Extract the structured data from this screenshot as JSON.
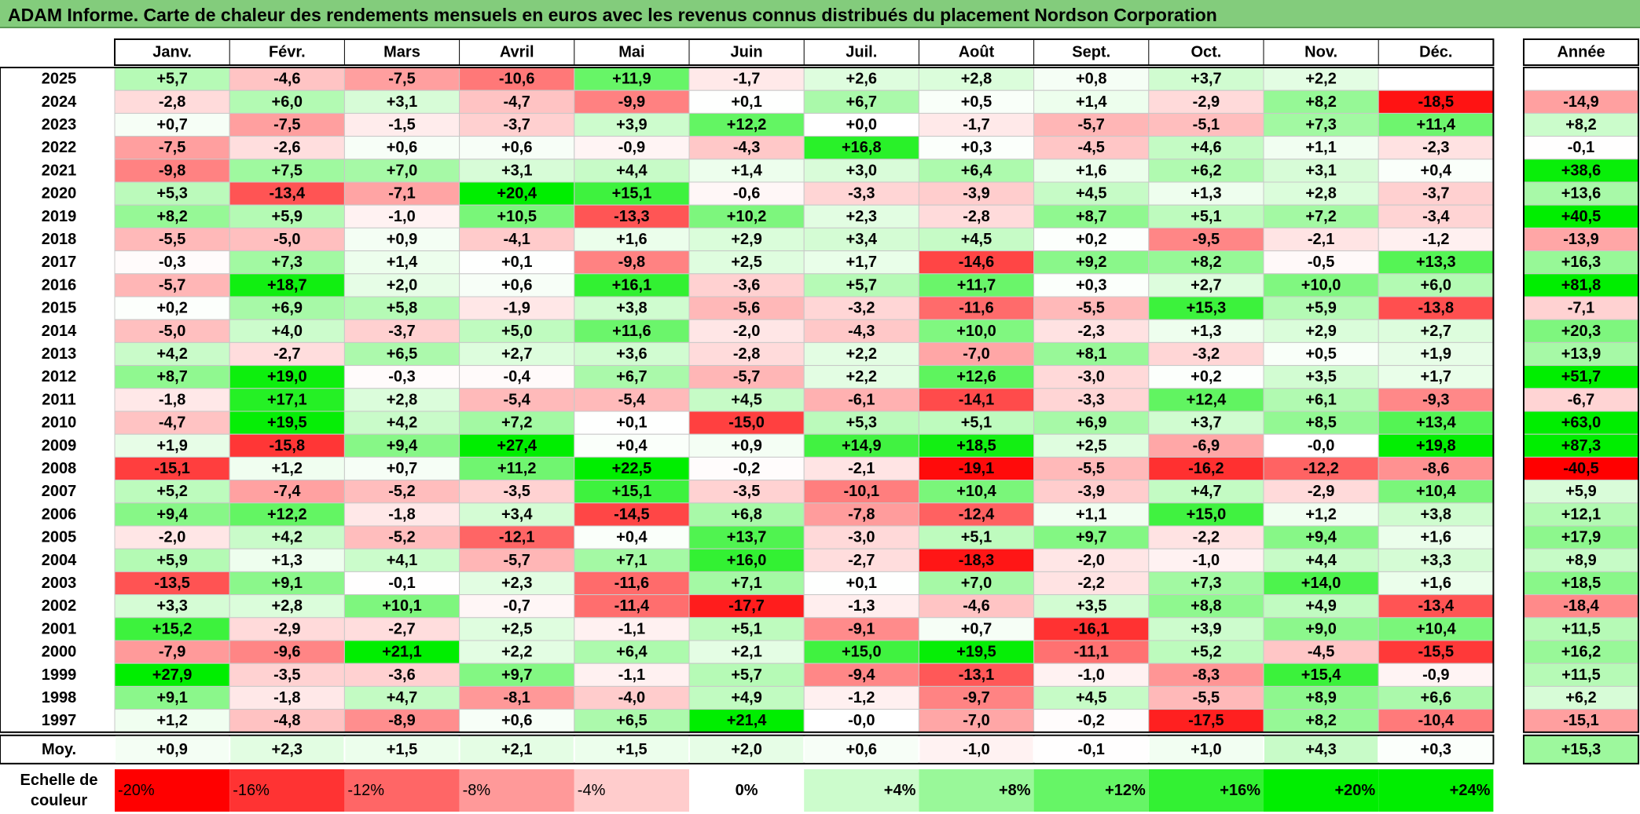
{
  "title": "ADAM Informe. Carte de chaleur des rendements mensuels en euros avec les revenus connus distribués du placement Nordson Corporation",
  "chart_data": {
    "type": "heatmap",
    "months": [
      "Janv.",
      "Févr.",
      "Mars",
      "Avril",
      "Mai",
      "Juin",
      "Juil.",
      "Août",
      "Sept.",
      "Oct.",
      "Nov.",
      "Déc."
    ],
    "annual_header": "Année",
    "years": [
      "2025",
      "2024",
      "2023",
      "2022",
      "2021",
      "2020",
      "2019",
      "2018",
      "2017",
      "2016",
      "2015",
      "2014",
      "2013",
      "2012",
      "2011",
      "2010",
      "2009",
      "2008",
      "2007",
      "2006",
      "2005",
      "2004",
      "2003",
      "2002",
      "2001",
      "2000",
      "1999",
      "1998",
      "1997"
    ],
    "values": [
      [
        "+5,7",
        "-4,6",
        "-7,5",
        "-10,6",
        "+11,9",
        "-1,7",
        "+2,6",
        "+2,8",
        "+0,8",
        "+3,7",
        "+2,2",
        ""
      ],
      [
        "-2,8",
        "+6,0",
        "+3,1",
        "-4,7",
        "-9,9",
        "+0,1",
        "+6,7",
        "+0,5",
        "+1,4",
        "-2,9",
        "+8,2",
        "-18,5"
      ],
      [
        "+0,7",
        "-7,5",
        "-1,5",
        "-3,7",
        "+3,9",
        "+12,2",
        "+0,0",
        "-1,7",
        "-5,7",
        "-5,1",
        "+7,3",
        "+11,4"
      ],
      [
        "-7,5",
        "-2,6",
        "+0,6",
        "+0,6",
        "-0,9",
        "-4,3",
        "+16,8",
        "+0,3",
        "-4,5",
        "+4,6",
        "+1,1",
        "-2,3"
      ],
      [
        "-9,8",
        "+7,5",
        "+7,0",
        "+3,1",
        "+4,4",
        "+1,4",
        "+3,0",
        "+6,4",
        "+1,6",
        "+6,2",
        "+3,1",
        "+0,4"
      ],
      [
        "+5,3",
        "-13,4",
        "-7,1",
        "+20,4",
        "+15,1",
        "-0,6",
        "-3,3",
        "-3,9",
        "+4,5",
        "+1,3",
        "+2,8",
        "-3,7"
      ],
      [
        "+8,2",
        "+5,9",
        "-1,0",
        "+10,5",
        "-13,3",
        "+10,2",
        "+2,3",
        "-2,8",
        "+8,7",
        "+5,1",
        "+7,2",
        "-3,4"
      ],
      [
        "-5,5",
        "-5,0",
        "+0,9",
        "-4,1",
        "+1,6",
        "+2,9",
        "+3,4",
        "+4,5",
        "+0,2",
        "-9,5",
        "-2,1",
        "-1,2"
      ],
      [
        "-0,3",
        "+7,3",
        "+1,4",
        "+0,1",
        "-9,8",
        "+2,5",
        "+1,7",
        "-14,6",
        "+9,2",
        "+8,2",
        "-0,5",
        "+13,3"
      ],
      [
        "-5,7",
        "+18,7",
        "+2,0",
        "+0,6",
        "+16,1",
        "-3,6",
        "+5,7",
        "+11,7",
        "+0,3",
        "+2,7",
        "+10,0",
        "+6,0"
      ],
      [
        "+0,2",
        "+6,9",
        "+5,8",
        "-1,9",
        "+3,8",
        "-5,6",
        "-3,2",
        "-11,6",
        "-5,5",
        "+15,3",
        "+5,9",
        "-13,8"
      ],
      [
        "-5,0",
        "+4,0",
        "-3,7",
        "+5,0",
        "+11,6",
        "-2,0",
        "-4,3",
        "+10,0",
        "-2,3",
        "+1,3",
        "+2,9",
        "+2,7"
      ],
      [
        "+4,2",
        "-2,7",
        "+6,5",
        "+2,7",
        "+3,6",
        "-2,8",
        "+2,2",
        "-7,0",
        "+8,1",
        "-3,2",
        "+0,5",
        "+1,9"
      ],
      [
        "+8,7",
        "+19,0",
        "-0,3",
        "-0,4",
        "+6,7",
        "-5,7",
        "+2,2",
        "+12,6",
        "-3,0",
        "+0,2",
        "+3,5",
        "+1,7"
      ],
      [
        "-1,8",
        "+17,1",
        "+2,8",
        "-5,4",
        "-5,4",
        "+4,5",
        "-6,1",
        "-14,1",
        "-3,3",
        "+12,4",
        "+6,1",
        "-9,3"
      ],
      [
        "-4,7",
        "+19,5",
        "+4,2",
        "+7,2",
        "+0,1",
        "-15,0",
        "+5,3",
        "+5,1",
        "+6,9",
        "+3,7",
        "+8,5",
        "+13,4"
      ],
      [
        "+1,9",
        "-15,8",
        "+9,4",
        "+27,4",
        "+0,4",
        "+0,9",
        "+14,9",
        "+18,5",
        "+2,5",
        "-6,9",
        "-0,0",
        "+19,8"
      ],
      [
        "-15,1",
        "+1,2",
        "+0,7",
        "+11,2",
        "+22,5",
        "-0,2",
        "-2,1",
        "-19,1",
        "-5,5",
        "-16,2",
        "-12,2",
        "-8,6"
      ],
      [
        "+5,2",
        "-7,4",
        "-5,2",
        "-3,5",
        "+15,1",
        "-3,5",
        "-10,1",
        "+10,4",
        "-3,9",
        "+4,7",
        "-2,9",
        "+10,4"
      ],
      [
        "+9,4",
        "+12,2",
        "-1,8",
        "+3,4",
        "-14,5",
        "+6,8",
        "-7,8",
        "-12,4",
        "+1,1",
        "+15,0",
        "+1,2",
        "+3,8"
      ],
      [
        "-2,0",
        "+4,2",
        "-5,2",
        "-12,1",
        "+0,4",
        "+13,7",
        "-3,0",
        "+5,1",
        "+9,7",
        "-2,2",
        "+9,4",
        "+1,6"
      ],
      [
        "+5,9",
        "+1,3",
        "+4,1",
        "-5,7",
        "+7,1",
        "+16,0",
        "-2,7",
        "-18,3",
        "-2,0",
        "-1,0",
        "+4,4",
        "+3,3"
      ],
      [
        "-13,5",
        "+9,1",
        "-0,1",
        "+2,3",
        "-11,6",
        "+7,1",
        "+0,1",
        "+7,0",
        "-2,2",
        "+7,3",
        "+14,0",
        "+1,6"
      ],
      [
        "+3,3",
        "+2,8",
        "+10,1",
        "-0,7",
        "-11,4",
        "-17,7",
        "-1,3",
        "-4,6",
        "+3,5",
        "+8,8",
        "+4,9",
        "-13,4"
      ],
      [
        "+15,2",
        "-2,9",
        "-2,7",
        "+2,5",
        "-1,1",
        "+5,1",
        "-9,1",
        "+0,7",
        "-16,1",
        "+3,9",
        "+9,0",
        "+10,4"
      ],
      [
        "-7,9",
        "-9,6",
        "+21,1",
        "+2,2",
        "+6,4",
        "+2,1",
        "+15,0",
        "+19,5",
        "-11,1",
        "+5,2",
        "-4,5",
        "-15,5"
      ],
      [
        "+27,9",
        "-3,5",
        "-3,6",
        "+9,7",
        "-1,1",
        "+5,7",
        "-9,4",
        "-13,1",
        "-1,0",
        "-8,3",
        "+15,4",
        "-0,9"
      ],
      [
        "+9,1",
        "-1,8",
        "+4,7",
        "-8,1",
        "-4,0",
        "+4,9",
        "-1,2",
        "-9,7",
        "+4,5",
        "-5,5",
        "+8,9",
        "+6,6"
      ],
      [
        "+1,2",
        "-4,8",
        "-8,9",
        "+0,6",
        "+6,5",
        "+21,4",
        "-0,0",
        "-7,0",
        "-0,2",
        "-17,5",
        "+8,2",
        "-10,4"
      ]
    ],
    "annual": [
      "",
      "-14,9",
      "+8,2",
      "-0,1",
      "+38,6",
      "+13,6",
      "+40,5",
      "-13,9",
      "+16,3",
      "+81,8",
      "-7,1",
      "+20,3",
      "+13,9",
      "+51,7",
      "-6,7",
      "+63,0",
      "+87,3",
      "-40,5",
      "+5,9",
      "+12,1",
      "+17,9",
      "+8,9",
      "+18,5",
      "-18,4",
      "+11,5",
      "+16,2",
      "+11,5",
      "+6,2",
      "-15,1"
    ],
    "average_label": "Moy.",
    "averages": [
      "+0,9",
      "+2,3",
      "+1,5",
      "+2,1",
      "+1,5",
      "+2,0",
      "+0,6",
      "-1,0",
      "-0,1",
      "+1,0",
      "+4,3",
      "+0,3"
    ],
    "average_annual": "+15,3",
    "scale_label": "Echelle de couleur",
    "scale": [
      "-20%",
      "-16%",
      "-12%",
      "-8%",
      "-4%",
      "0%",
      "+4%",
      "+8%",
      "+12%",
      "+16%",
      "+20%",
      "+24%"
    ],
    "colors": {
      "negative_max": "#ff0000",
      "neutral": "#ffffff",
      "positive_max": "#00ee00",
      "title_bg": "#83cc7c"
    }
  }
}
